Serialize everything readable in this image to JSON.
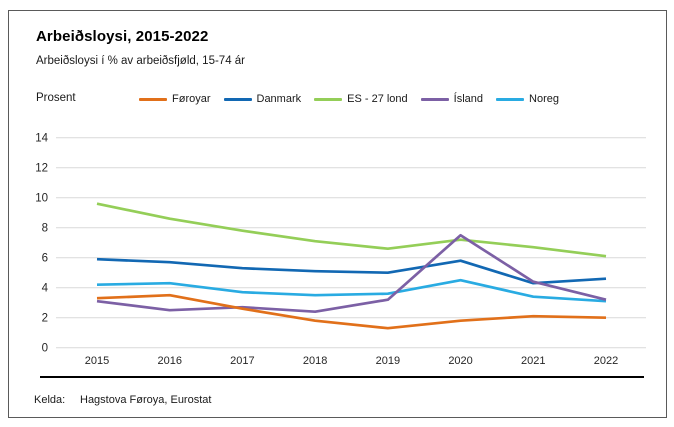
{
  "header": {
    "title": "Arbeiðsloysi, 2015-2022",
    "subtitle": "Arbeiðsloysi í % av arbeiðsfjøld, 15-74 ár",
    "y_unit_label": "Prosent"
  },
  "footer": {
    "source_label": "Kelda:",
    "source_text": "Hagstova Føroya, Eurostat"
  },
  "colors": {
    "gridline": "#d9d9d9",
    "tick_text": "#262626",
    "frame_border": "#5a5a5a",
    "footer_rule": "#000000"
  },
  "chart_data": {
    "type": "line",
    "title": "Arbeiðsloysi, 2015-2022",
    "subtitle": "Arbeiðsloysi í % av arbeiðsfjøld, 15-74 ár",
    "ylabel": "Prosent",
    "xlabel": "",
    "grid": true,
    "legend_position": "top",
    "ylim": [
      0,
      14
    ],
    "yticks": [
      0,
      2,
      4,
      6,
      8,
      10,
      12,
      14
    ],
    "categories": [
      "2015",
      "2016",
      "2017",
      "2018",
      "2019",
      "2020",
      "2021",
      "2022"
    ],
    "series": [
      {
        "name": "Føroyar",
        "color": "#E1701A",
        "values": [
          3.3,
          3.5,
          2.6,
          1.8,
          1.3,
          1.8,
          2.1,
          2.0
        ]
      },
      {
        "name": "Danmark",
        "color": "#1268B3",
        "values": [
          5.9,
          5.7,
          5.3,
          5.1,
          5.0,
          5.8,
          4.3,
          4.6
        ]
      },
      {
        "name": "ES - 27 lond",
        "color": "#94CE58",
        "values": [
          9.6,
          8.6,
          7.8,
          7.1,
          6.6,
          7.2,
          6.7,
          6.1
        ]
      },
      {
        "name": "Ísland",
        "color": "#7C60A5",
        "values": [
          3.1,
          2.5,
          2.7,
          2.4,
          3.2,
          7.5,
          4.4,
          3.2
        ]
      },
      {
        "name": "Noreg",
        "color": "#29ABE2",
        "values": [
          4.2,
          4.3,
          3.7,
          3.5,
          3.6,
          4.5,
          3.4,
          3.1
        ]
      }
    ]
  }
}
